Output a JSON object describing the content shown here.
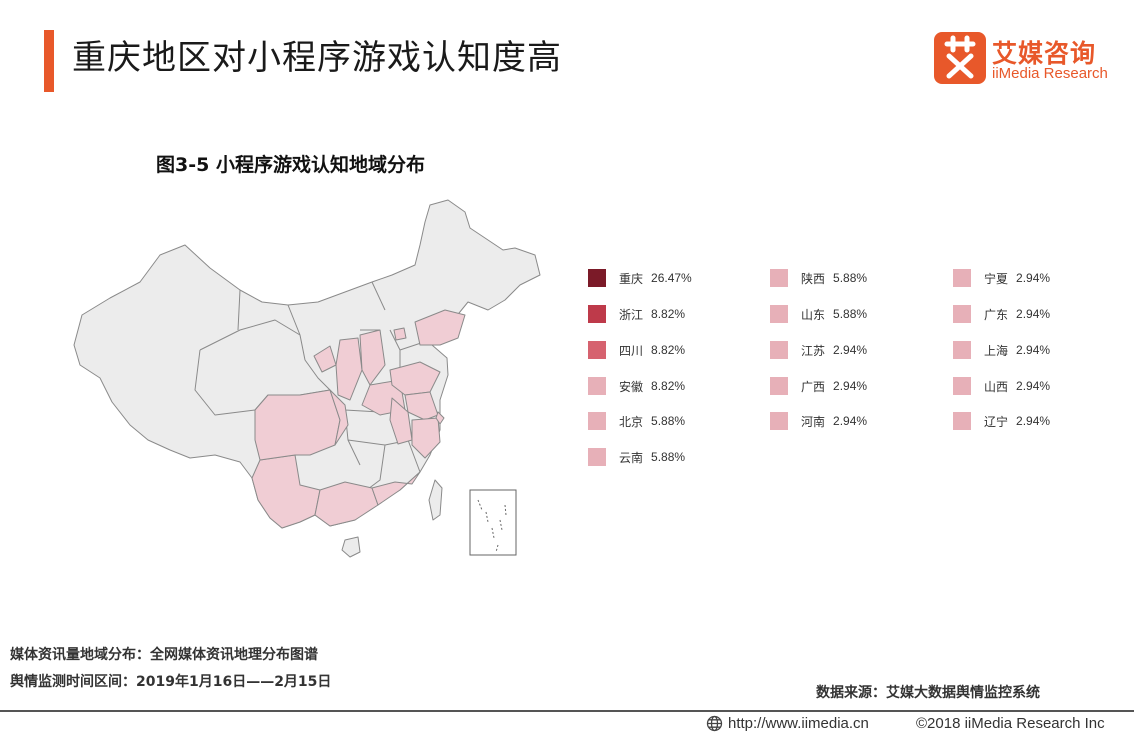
{
  "header": {
    "title": "重庆地区对小程序游戏认知度高",
    "logo_cn": "艾媒咨询",
    "logo_en": "iiMedia Research",
    "accent_color": "#e8582a"
  },
  "figure": {
    "title": "图3-5 小程序游戏认知地域分布"
  },
  "map_legend": [
    {
      "region": "重庆",
      "value": "26.47%",
      "color": "#7b1a28"
    },
    {
      "region": "浙江",
      "value": "8.82%",
      "color": "#be3a4a"
    },
    {
      "region": "四川",
      "value": "8.82%",
      "color": "#d6626f"
    },
    {
      "region": "安徽",
      "value": "8.82%",
      "color": "#e7b0b8"
    },
    {
      "region": "北京",
      "value": "5.88%",
      "color": "#e7b0b8"
    },
    {
      "region": "云南",
      "value": "5.88%",
      "color": "#e7b0b8"
    },
    {
      "region": "陕西",
      "value": "5.88%",
      "color": "#e7b0b8"
    },
    {
      "region": "山东",
      "value": "5.88%",
      "color": "#e7b0b8"
    },
    {
      "region": "江苏",
      "value": "2.94%",
      "color": "#e7b0b8"
    },
    {
      "region": "广西",
      "value": "2.94%",
      "color": "#e7b0b8"
    },
    {
      "region": "河南",
      "value": "2.94%",
      "color": "#e7b0b8"
    },
    {
      "region": "宁夏",
      "value": "2.94%",
      "color": "#e7b0b8"
    },
    {
      "region": "广东",
      "value": "2.94%",
      "color": "#e7b0b8"
    },
    {
      "region": "上海",
      "value": "2.94%",
      "color": "#e7b0b8"
    },
    {
      "region": "山西",
      "value": "2.94%",
      "color": "#e7b0b8"
    },
    {
      "region": "辽宁",
      "value": "2.94%",
      "color": "#e7b0b8"
    }
  ],
  "map_colors": {
    "base_fill": "#ececec",
    "highlight_fill": "#f0cdd4",
    "border": "#8a8a8a"
  },
  "notes": {
    "line1": "媒体资讯量地域分布：全网媒体资讯地理分布图谱",
    "line2": "舆情监测时间区间：2019年1月16日——2月15日"
  },
  "source": "数据来源：艾媒大数据舆情监控系统",
  "footer": {
    "url": "http://www.iimedia.cn",
    "copyright": "©2018  iiMedia Research  Inc"
  }
}
